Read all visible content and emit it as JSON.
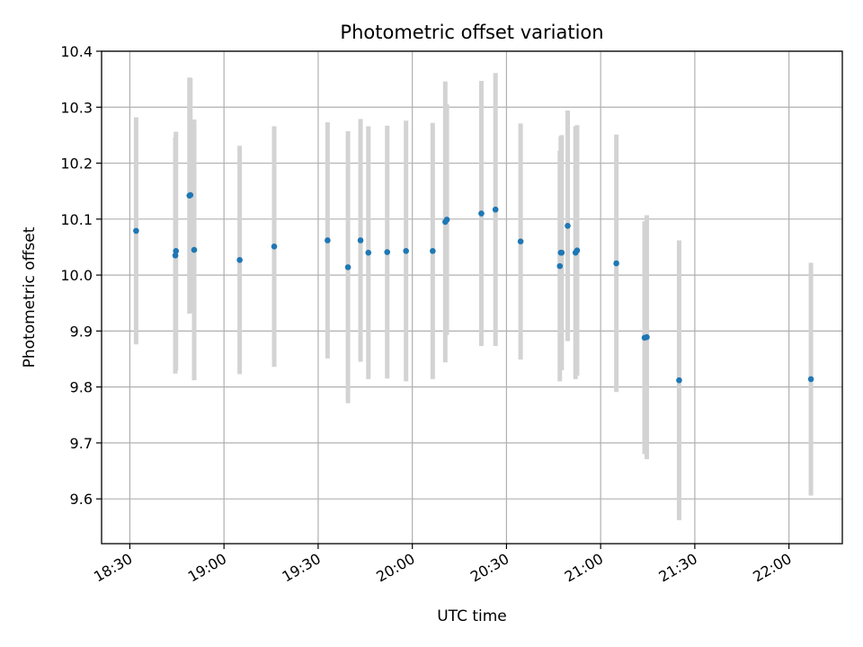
{
  "chart_data": {
    "type": "scatter",
    "title": "Photometric offset variation",
    "xlabel": "UTC time",
    "ylabel": "Photometric offset",
    "xlim": [
      "18:21",
      "22:17"
    ],
    "ylim": [
      9.52,
      10.4
    ],
    "x_ticks": [
      "18:30",
      "19:00",
      "19:30",
      "20:00",
      "20:30",
      "21:00",
      "21:30",
      "22:00"
    ],
    "y_ticks": [
      "9.6",
      "9.7",
      "9.8",
      "9.9",
      "10.0",
      "10.1",
      "10.2",
      "10.3",
      "10.4"
    ],
    "grid": true,
    "colors": {
      "point": "#1f77b4",
      "errorbar": "#d3d3d3",
      "grid": "#b0b0b0"
    },
    "points": [
      {
        "x": "18:32",
        "y": 10.079,
        "err": 0.203
      },
      {
        "x": "18:44.5",
        "y": 10.035,
        "err": 0.211
      },
      {
        "x": "18:44.7",
        "y": 10.043,
        "err": 0.213
      },
      {
        "x": "18:49",
        "y": 10.142,
        "err": 0.211
      },
      {
        "x": "18:49.3",
        "y": 10.143,
        "err": 0.209
      },
      {
        "x": "18:50.5",
        "y": 10.045,
        "err": 0.233
      },
      {
        "x": "19:05",
        "y": 10.027,
        "err": 0.204
      },
      {
        "x": "19:16",
        "y": 10.051,
        "err": 0.215
      },
      {
        "x": "19:33",
        "y": 10.062,
        "err": 0.211
      },
      {
        "x": "19:39.5",
        "y": 10.014,
        "err": 0.243
      },
      {
        "x": "19:43.5",
        "y": 10.062,
        "err": 0.217
      },
      {
        "x": "19:46",
        "y": 10.04,
        "err": 0.226
      },
      {
        "x": "19:52",
        "y": 10.041,
        "err": 0.226
      },
      {
        "x": "19:58",
        "y": 10.043,
        "err": 0.233
      },
      {
        "x": "20:06.5",
        "y": 10.043,
        "err": 0.229
      },
      {
        "x": "20:10.5",
        "y": 10.095,
        "err": 0.251
      },
      {
        "x": "20:11",
        "y": 10.099,
        "err": 0.206
      },
      {
        "x": "20:22",
        "y": 10.11,
        "err": 0.237
      },
      {
        "x": "20:26.5",
        "y": 10.117,
        "err": 0.244
      },
      {
        "x": "20:34.5",
        "y": 10.06,
        "err": 0.211
      },
      {
        "x": "20:47",
        "y": 10.016,
        "err": 0.206
      },
      {
        "x": "20:47.3",
        "y": 10.04,
        "err": 0.208
      },
      {
        "x": "20:47.6",
        "y": 10.04,
        "err": 0.21
      },
      {
        "x": "20:49.5",
        "y": 10.088,
        "err": 0.206
      },
      {
        "x": "20:52",
        "y": 10.04,
        "err": 0.226
      },
      {
        "x": "20:52.5",
        "y": 10.044,
        "err": 0.224
      },
      {
        "x": "21:05",
        "y": 10.021,
        "err": 0.23
      },
      {
        "x": "21:14",
        "y": 9.888,
        "err": 0.208
      },
      {
        "x": "21:14.7",
        "y": 9.889,
        "err": 0.218
      },
      {
        "x": "21:25",
        "y": 9.812,
        "err": 0.25
      },
      {
        "x": "22:07",
        "y": 9.814,
        "err": 0.208
      }
    ]
  }
}
